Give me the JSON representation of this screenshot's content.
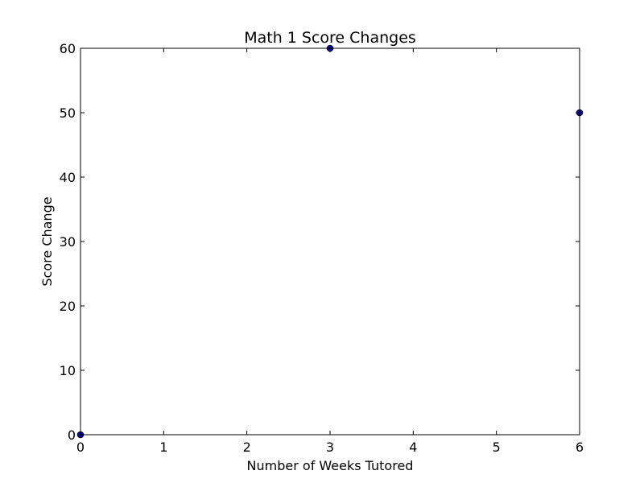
{
  "chart_data": {
    "type": "scatter",
    "title": "Math 1 Score Changes",
    "xlabel": "Number of Weeks Tutored",
    "ylabel": "Score Change",
    "xlim": [
      0,
      6
    ],
    "ylim": [
      0,
      60
    ],
    "xticks": [
      0,
      1,
      2,
      3,
      4,
      5,
      6
    ],
    "yticks": [
      0,
      10,
      20,
      30,
      40,
      50,
      60
    ],
    "grid": false,
    "point_color": "#0a0a8c",
    "series": [
      {
        "x": [
          0,
          3,
          6
        ],
        "y": [
          0,
          60,
          50
        ]
      }
    ]
  }
}
